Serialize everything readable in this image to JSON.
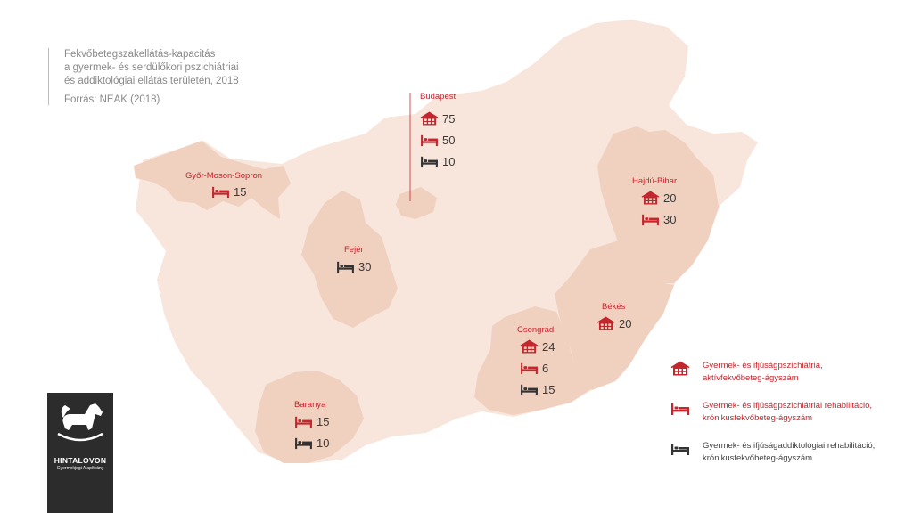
{
  "title": {
    "lines": [
      "Fekvőbetegszakellátás-kapacitás",
      "a gyermek- és serdülőkori pszichiátriai",
      "és addiktológiai ellátás területén, 2018"
    ],
    "source": "Forrás: NEAK (2018)"
  },
  "colors": {
    "country_fill": "#f8e6dc",
    "county_fill": "#f0d0bf",
    "accent_red": "#c4262e",
    "dark": "#333333"
  },
  "regions": {
    "budapest": {
      "name": "Budapest",
      "acute": "75",
      "rehab": "50",
      "addict": "10"
    },
    "gyor": {
      "name": "Győr-Moson-Sopron",
      "rehab": "15"
    },
    "fejer": {
      "name": "Fejér",
      "addict": "30"
    },
    "hajdu": {
      "name": "Hajdú-Bihar",
      "acute": "20",
      "rehab": "30"
    },
    "bekes": {
      "name": "Békés",
      "acute": "20"
    },
    "csongrad": {
      "name": "Csongrád",
      "acute": "24",
      "rehab": "6",
      "addict": "15"
    },
    "baranya": {
      "name": "Baranya",
      "rehab": "15",
      "addict": "10"
    }
  },
  "legend": {
    "acute": [
      "Gyermek- és ifjúságpszichiátria,",
      "aktívfekvőbeteg-ágyszám"
    ],
    "rehab": [
      "Gyermek- és ifjúságpszichiátriai rehabilitáció,",
      "krónikusfekvőbeteg-ágyszám"
    ],
    "addict": [
      "Gyermek- és ifjúságaddiktológiai rehabilitáció,",
      "krónikusfekvőbeteg-ágyszám"
    ]
  },
  "icons": {
    "acute": "hospital-icon",
    "rehab": "bed-icon",
    "addict": "bed-icon"
  },
  "logo": {
    "name": "HINTALOVON",
    "subtitle": "Gyermekjogi Alapítvány"
  }
}
